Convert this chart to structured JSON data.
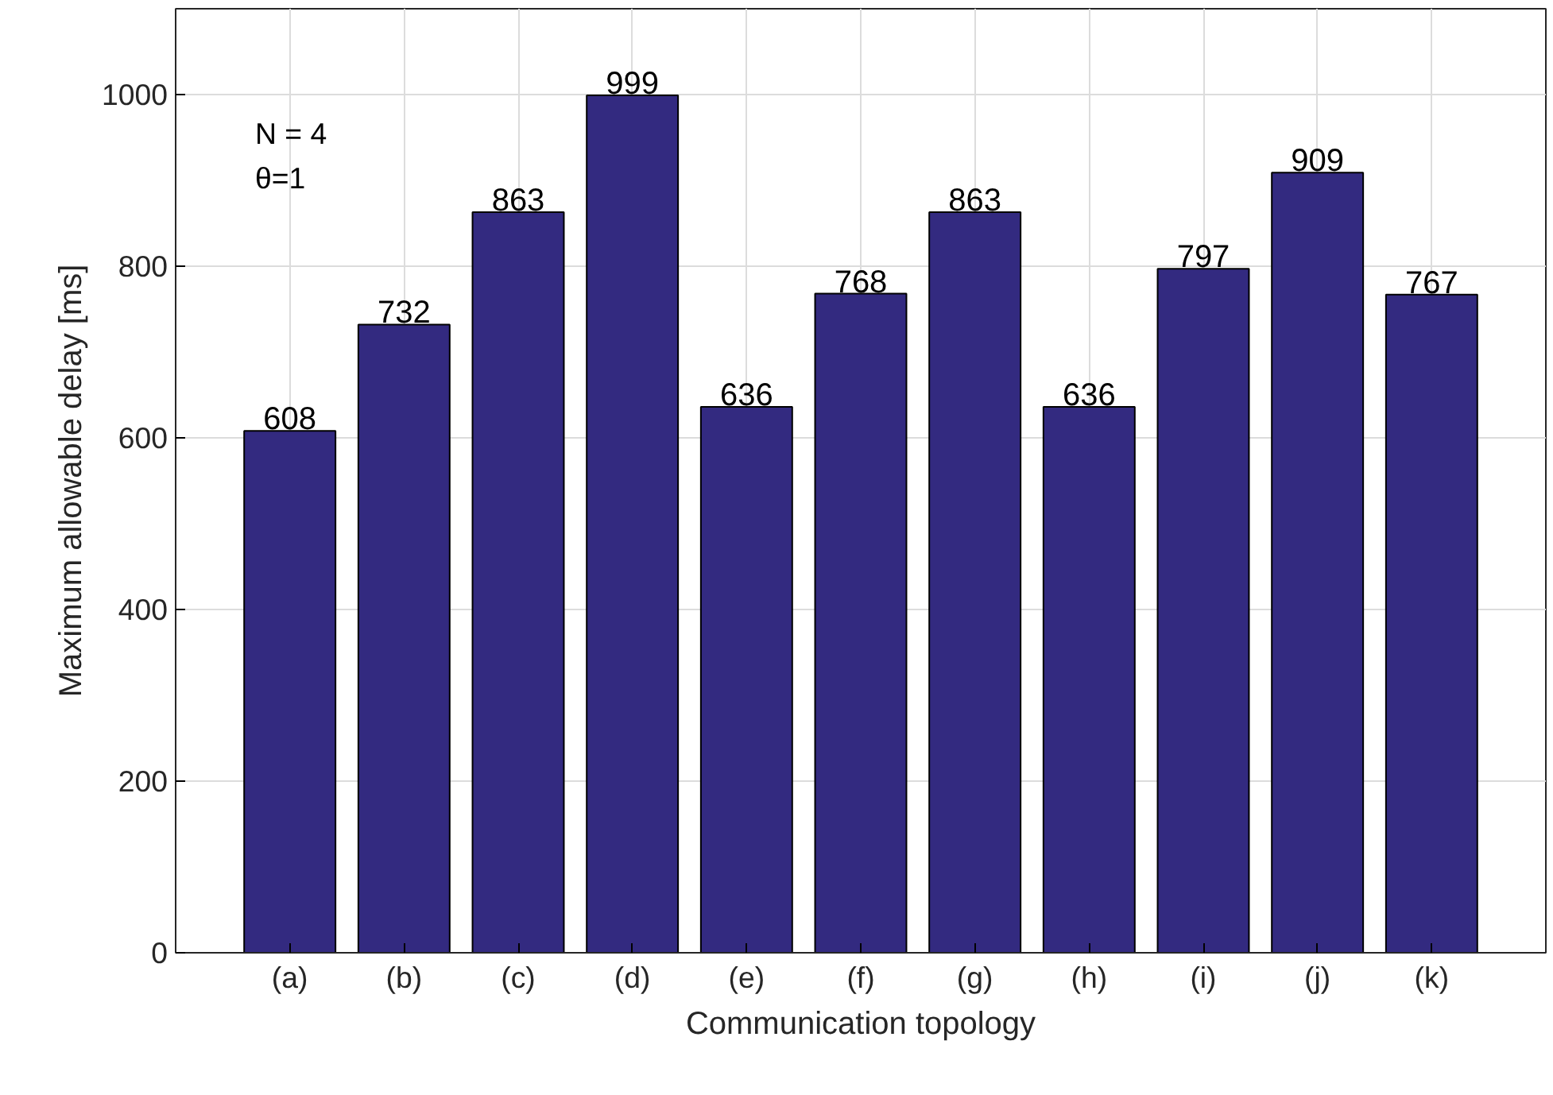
{
  "chart_data": {
    "type": "bar",
    "xlabel": "Communication topology",
    "ylabel": "Maximum allowable delay [ms]",
    "categories": [
      "(a)",
      "(b)",
      "(c)",
      "(d)",
      "(e)",
      "(f)",
      "(g)",
      "(h)",
      "(i)",
      "(j)",
      "(k)"
    ],
    "values": [
      608,
      732,
      863,
      999,
      636,
      768,
      863,
      636,
      797,
      909,
      767
    ],
    "color": "#332a80",
    "ylim": [
      0,
      1100
    ],
    "yticks": [
      0,
      200,
      400,
      600,
      800,
      1000
    ],
    "grid": true,
    "data_labels": true,
    "annotations": [
      "N = 4",
      "θ=1"
    ]
  }
}
